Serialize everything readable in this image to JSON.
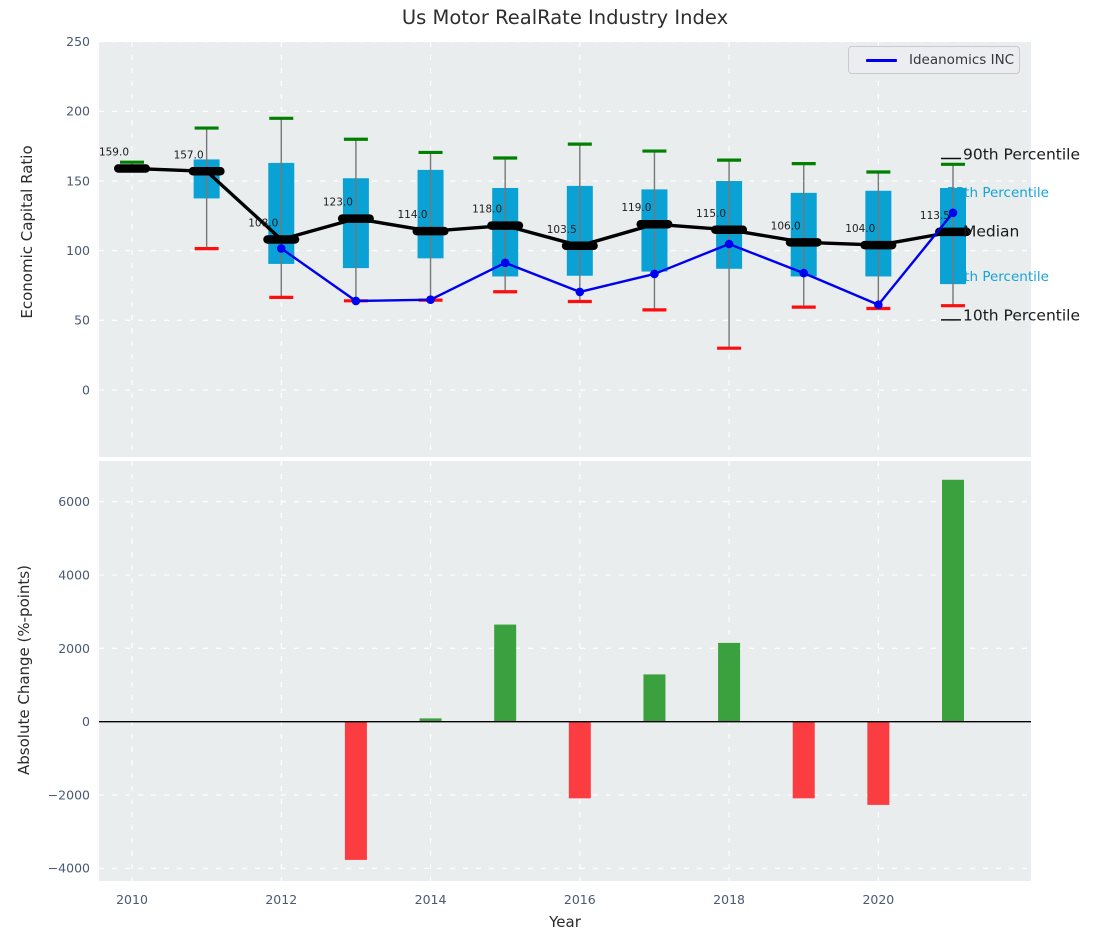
{
  "title": "Us Motor RealRate Industry Index",
  "legend": {
    "label": "Ideanomics INC"
  },
  "axes": {
    "top": {
      "ylabel": "Economic Capital Ratio",
      "ytick_values": [
        250,
        200,
        150,
        100,
        50,
        0
      ]
    },
    "bottom": {
      "ylabel": "Absolute Change (%-points)",
      "xlabel": "Year",
      "ytick_values": [
        6000,
        4000,
        2000,
        0,
        -2000,
        -4000
      ],
      "xtick_values": [
        2010,
        2012,
        2014,
        2016,
        2018,
        2020
      ]
    }
  },
  "right_labels": [
    {
      "text": "90th Percentile",
      "style": "black",
      "anchor_value": 169.4,
      "leader": true
    },
    {
      "text": "75th Percentile",
      "style": "cyan",
      "anchor_value": 142.1,
      "leader": false
    },
    {
      "text": "Median",
      "style": "black",
      "anchor_value": 114.1,
      "leader": false
    },
    {
      "text": "25th Percentile",
      "style": "cyan",
      "anchor_value": 81.8,
      "leader": false
    },
    {
      "text": "10th Percentile",
      "style": "black",
      "anchor_value": 53.6,
      "leader": true
    }
  ],
  "chart_data": [
    {
      "type": "boxplot+line",
      "title": "Us Motor RealRate Industry Index",
      "ylabel": "Economic Capital Ratio",
      "ylim": [
        -48,
        250
      ],
      "grid": true,
      "years": [
        2010,
        2011,
        2012,
        2013,
        2014,
        2015,
        2016,
        2017,
        2018,
        2019,
        2020,
        2021
      ],
      "percentiles": {
        "p90": [
          163.5,
          188.0,
          195.0,
          180.0,
          170.5,
          166.5,
          176.5,
          171.5,
          165.0,
          162.5,
          156.5,
          162.0
        ],
        "q75": [
          160.0,
          165.5,
          163.0,
          152.0,
          158.0,
          145.0,
          146.5,
          144.0,
          150.0,
          141.5,
          143.0,
          145.0
        ],
        "median": [
          159.0,
          157.0,
          108.0,
          123.0,
          114.0,
          118.0,
          103.5,
          119.0,
          115.0,
          106.0,
          104.0,
          113.5
        ],
        "q25": [
          157.5,
          137.5,
          90.5,
          87.5,
          94.5,
          81.5,
          82.0,
          85.0,
          87.0,
          81.5,
          81.5,
          76.0
        ],
        "p10": [
          157.5,
          101.5,
          66.5,
          64.0,
          64.5,
          70.5,
          63.5,
          57.5,
          30.0,
          59.5,
          58.5,
          60.5
        ]
      },
      "median_labels": [
        "159.0",
        "157.0",
        "108.0",
        "123.0",
        "114.0",
        "118.0",
        "103.5",
        "119.0",
        "115.0",
        "106.0",
        "104.0",
        "113.5"
      ],
      "series": [
        {
          "name": "Ideanomics INC",
          "years": [
            2012,
            2013,
            2014,
            2015,
            2016,
            2017,
            2018,
            2019,
            2020,
            2021
          ],
          "values": [
            101.6,
            63.9,
            64.8,
            91.3,
            70.4,
            83.3,
            104.8,
            83.9,
            61.2,
            127.2
          ]
        }
      ]
    },
    {
      "type": "bar",
      "ylabel": "Absolute Change (%-points)",
      "xlabel": "Year",
      "ylim": [
        -4350,
        7115
      ],
      "grid": true,
      "years": [
        2013,
        2014,
        2015,
        2016,
        2017,
        2018,
        2019,
        2020,
        2021
      ],
      "values": [
        -3770,
        90,
        2650,
        -2090,
        1290,
        2150,
        -2090,
        -2270,
        6600
      ]
    }
  ],
  "colors": {
    "axes_background": "#e9edee",
    "grid": "#ffffff",
    "box_fill": "#0aa2d4",
    "p90_cap": "#007f00",
    "p10_cap": "#fd0d0d",
    "whisker": "#777777",
    "median": "#000000",
    "company_line": "#0000f0",
    "bar_positive": "#3aa13e",
    "bar_negative": "#fb3d41",
    "tick_text": "#4a5a73",
    "label_text": "#2b2b2b",
    "cyan_label": "#16a3d5"
  }
}
